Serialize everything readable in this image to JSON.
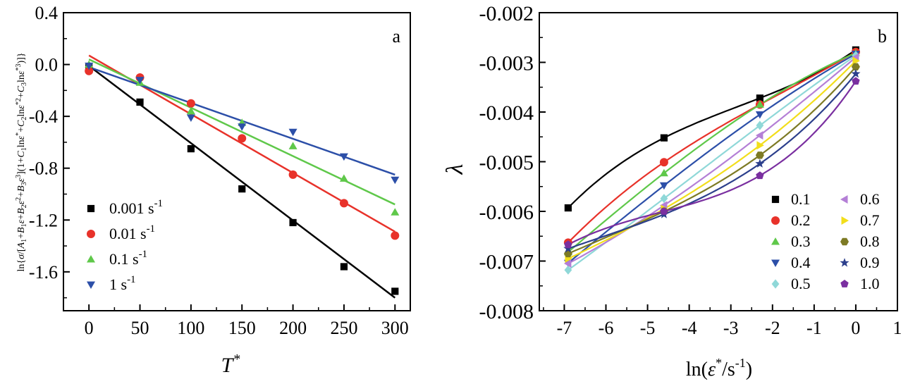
{
  "chart_data": [
    {
      "type": "scatter",
      "panel_label": "a",
      "xlabel": "T*",
      "ylabel": "ln{σ/[A1+B1ε+B2ε²+B3ε³](1+C1lnε*+C2lnε*²+C3lnε*³)]}",
      "xlim": [
        -25,
        315
      ],
      "ylim": [
        -1.9,
        0.4
      ],
      "xticks": [
        0,
        50,
        100,
        150,
        200,
        250,
        300
      ],
      "xtick_labels": [
        "0",
        "50",
        "100",
        "150",
        "200",
        "250",
        "300"
      ],
      "yticks": [
        0.4,
        0.0,
        -0.4,
        -0.8,
        -1.2,
        -1.6
      ],
      "ytick_labels": [
        "0.4",
        "0.0",
        "-0.4",
        "-0.8",
        "-1.2",
        "-1.6"
      ],
      "legend_position": "bottom-left",
      "grid": false,
      "series": [
        {
          "name": "0.001 s",
          "unit_exp": "-1",
          "color": "#000000",
          "marker": "square",
          "x": [
            0,
            50,
            100,
            150,
            200,
            250,
            300
          ],
          "y": [
            -0.02,
            -0.29,
            -0.65,
            -0.96,
            -1.22,
            -1.56,
            -1.75
          ],
          "fit": [
            [
              0,
              -0.01
            ],
            [
              300,
              -1.8
            ]
          ]
        },
        {
          "name": "0.01 s",
          "unit_exp": "-1",
          "color": "#e8322a",
          "marker": "circle",
          "x": [
            0,
            50,
            100,
            150,
            200,
            250,
            300
          ],
          "y": [
            -0.05,
            -0.1,
            -0.3,
            -0.57,
            -0.85,
            -1.07,
            -1.32
          ],
          "fit": [
            [
              0,
              0.07
            ],
            [
              300,
              -1.29
            ]
          ]
        },
        {
          "name": "0.1 s",
          "unit_exp": "-1",
          "color": "#5fc84a",
          "marker": "triangle-up",
          "x": [
            0,
            50,
            100,
            150,
            200,
            250,
            300
          ],
          "y": [
            0.0,
            -0.14,
            -0.36,
            -0.45,
            -0.63,
            -0.88,
            -1.14
          ],
          "fit": [
            [
              0,
              0.04
            ],
            [
              300,
              -1.08
            ]
          ]
        },
        {
          "name": "1 s",
          "unit_exp": "-1",
          "color": "#2c4fa8",
          "marker": "triangle-down",
          "x": [
            0,
            50,
            100,
            150,
            200,
            250,
            300
          ],
          "y": [
            -0.01,
            -0.12,
            -0.41,
            -0.48,
            -0.52,
            -0.71,
            -0.89
          ],
          "fit": [
            [
              0,
              -0.02
            ],
            [
              300,
              -0.85
            ]
          ]
        }
      ]
    },
    {
      "type": "scatter",
      "panel_label": "b",
      "xlabel": "ln(ε*/s⁻¹)",
      "ylabel": "λ",
      "xlim": [
        -7.6,
        1
      ],
      "ylim": [
        -0.008,
        -0.002
      ],
      "xticks": [
        -7,
        -6,
        -5,
        -4,
        -3,
        -2,
        -1,
        0,
        1
      ],
      "xtick_labels": [
        "-7",
        "-6",
        "-5",
        "-4",
        "-3",
        "-2",
        "-1",
        "0",
        "1"
      ],
      "yticks": [
        -0.002,
        -0.003,
        -0.004,
        -0.005,
        -0.006,
        -0.007,
        -0.008
      ],
      "ytick_labels": [
        "-0.002",
        "-0.003",
        "-0.004",
        "-0.005",
        "-0.006",
        "-0.007",
        "-0.008"
      ],
      "legend_position": "bottom-right",
      "grid": false,
      "x": [
        -6.908,
        -4.605,
        -2.303,
        0
      ],
      "series": [
        {
          "name": "0.1",
          "color": "#000000",
          "marker": "square",
          "y": [
            -0.00593,
            -0.00452,
            -0.00372,
            -0.00275
          ]
        },
        {
          "name": "0.2",
          "color": "#e8322a",
          "marker": "circle",
          "y": [
            -0.00663,
            -0.00501,
            -0.00385,
            -0.00279
          ]
        },
        {
          "name": "0.3",
          "color": "#5fc84a",
          "marker": "triangle-up",
          "y": [
            -0.00682,
            -0.00523,
            -0.00385,
            -0.00281
          ]
        },
        {
          "name": "0.4",
          "color": "#2c4fa8",
          "marker": "triangle-down",
          "y": [
            -0.00704,
            -0.00548,
            -0.00405,
            -0.00283
          ]
        },
        {
          "name": "0.5",
          "color": "#8fd8d8",
          "marker": "diamond",
          "y": [
            -0.00718,
            -0.00574,
            -0.00427,
            -0.00286
          ]
        },
        {
          "name": "0.6",
          "color": "#b47fd6",
          "marker": "triangle-left",
          "y": [
            -0.00705,
            -0.00588,
            -0.00447,
            -0.0029
          ]
        },
        {
          "name": "0.7",
          "color": "#f2de1b",
          "marker": "triangle-right",
          "y": [
            -0.00695,
            -0.00595,
            -0.00467,
            -0.00297
          ]
        },
        {
          "name": "0.8",
          "color": "#7d7a24",
          "marker": "hexagon",
          "y": [
            -0.00685,
            -0.006,
            -0.00487,
            -0.00309
          ]
        },
        {
          "name": "0.9",
          "color": "#2c3f8c",
          "marker": "star",
          "y": [
            -0.00675,
            -0.00606,
            -0.00504,
            -0.00323
          ]
        },
        {
          "name": "1.0",
          "color": "#7a2fa0",
          "marker": "pentagon",
          "y": [
            -0.00667,
            -0.006,
            -0.00528,
            -0.00338
          ]
        }
      ]
    }
  ]
}
